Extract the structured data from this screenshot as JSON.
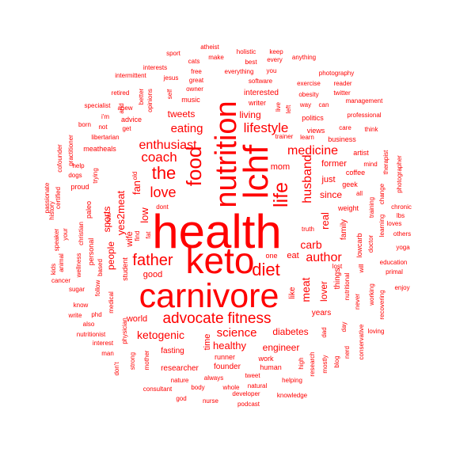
{
  "word_color": "#ff0000",
  "background": "#ffffff",
  "words": [
    {
      "text": "health",
      "weight": 100
    },
    {
      "text": "keto",
      "weight": 78
    },
    {
      "text": "carnivore",
      "weight": 72
    },
    {
      "text": "lchf",
      "weight": 70
    },
    {
      "text": "nutrition",
      "weight": 60
    },
    {
      "text": "food",
      "weight": 40
    },
    {
      "text": "life",
      "weight": 38
    },
    {
      "text": "diet",
      "weight": 35
    },
    {
      "text": "the",
      "weight": 33
    },
    {
      "text": "fitness",
      "weight": 32
    },
    {
      "text": "father",
      "weight": 30
    },
    {
      "text": "advocate",
      "weight": 30
    },
    {
      "text": "lifestyle",
      "weight": 27
    },
    {
      "text": "love",
      "weight": 27
    },
    {
      "text": "coach",
      "weight": 26
    },
    {
      "text": "enthusiast",
      "weight": 25
    },
    {
      "text": "husband",
      "weight": 25
    },
    {
      "text": "medicine",
      "weight": 24
    },
    {
      "text": "author",
      "weight": 24
    },
    {
      "text": "eating",
      "weight": 23
    },
    {
      "text": "science",
      "weight": 23
    },
    {
      "text": "ketogenic",
      "weight": 22
    },
    {
      "text": "carb",
      "weight": 22
    },
    {
      "text": "meat",
      "weight": 21
    },
    {
      "text": "yes2meat",
      "weight": 20
    },
    {
      "text": "low",
      "weight": 20
    },
    {
      "text": "fan",
      "weight": 19
    },
    {
      "text": "real",
      "weight": 19
    },
    {
      "text": "healthy",
      "weight": 19
    },
    {
      "text": "lover",
      "weight": 18
    },
    {
      "text": "engineer",
      "weight": 18
    },
    {
      "text": "diabetes",
      "weight": 17
    },
    {
      "text": "sports",
      "weight": 17
    },
    {
      "text": "people",
      "weight": 17
    },
    {
      "text": "wife",
      "weight": 16
    },
    {
      "text": "world",
      "weight": 16
    },
    {
      "text": "tweets",
      "weight": 16
    },
    {
      "text": "living",
      "weight": 16
    },
    {
      "text": "since",
      "weight": 15
    },
    {
      "text": "former",
      "weight": 15
    },
    {
      "text": "mom",
      "weight": 15
    },
    {
      "text": "time",
      "weight": 15
    },
    {
      "text": "just",
      "weight": 15
    },
    {
      "text": "fasting",
      "weight": 14
    },
    {
      "text": "researcher",
      "weight": 14
    },
    {
      "text": "good",
      "weight": 14
    },
    {
      "text": "founder",
      "weight": 14
    },
    {
      "text": "eat",
      "weight": 14
    },
    {
      "text": "like",
      "weight": 13
    },
    {
      "text": "years",
      "weight": 13
    },
    {
      "text": "interested",
      "weight": 13
    },
    {
      "text": "family",
      "weight": 13
    },
    {
      "text": "things",
      "weight": 13
    },
    {
      "text": "music",
      "weight": 12
    },
    {
      "text": "coffee",
      "weight": 12
    },
    {
      "text": "geek",
      "weight": 12
    },
    {
      "text": "weight",
      "weight": 12
    },
    {
      "text": "lowcarb",
      "weight": 12
    },
    {
      "text": "views",
      "weight": 12
    },
    {
      "text": "runner",
      "weight": 12
    },
    {
      "text": "politics",
      "weight": 11
    },
    {
      "text": "advice",
      "weight": 11
    },
    {
      "text": "writer",
      "weight": 11
    },
    {
      "text": "work",
      "weight": 11
    },
    {
      "text": "human",
      "weight": 11
    },
    {
      "text": "business",
      "weight": 11
    },
    {
      "text": "artist",
      "weight": 11
    },
    {
      "text": "student",
      "weight": 11
    },
    {
      "text": "personal",
      "weight": 11
    },
    {
      "text": "paleo",
      "weight": 11
    },
    {
      "text": "proud",
      "weight": 11
    },
    {
      "text": "meatheals",
      "weight": 11
    },
    {
      "text": "one",
      "weight": 10
    },
    {
      "text": "software",
      "weight": 10
    },
    {
      "text": "great",
      "weight": 10
    },
    {
      "text": "way",
      "weight": 10
    },
    {
      "text": "can",
      "weight": 10
    },
    {
      "text": "medical",
      "weight": 10
    },
    {
      "text": "physician",
      "weight": 10
    },
    {
      "text": "doctor",
      "weight": 10
    },
    {
      "text": "tweet",
      "weight": 10
    },
    {
      "text": "helping",
      "weight": 10
    },
    {
      "text": "developer",
      "weight": 10
    },
    {
      "text": "trying",
      "weight": 10
    },
    {
      "text": "christian",
      "weight": 10
    },
    {
      "text": "wellness",
      "weight": 10
    },
    {
      "text": "dont",
      "weight": 10
    },
    {
      "text": "follow",
      "weight": 10
    },
    {
      "text": "always",
      "weight": 10
    },
    {
      "text": "nature",
      "weight": 10
    },
    {
      "text": "body",
      "weight": 10
    },
    {
      "text": "natural",
      "weight": 10
    },
    {
      "text": "whole",
      "weight": 10
    },
    {
      "text": "exercise",
      "weight": 9
    },
    {
      "text": "obesity",
      "weight": 9
    },
    {
      "text": "everything",
      "weight": 9
    },
    {
      "text": "photography",
      "weight": 9
    },
    {
      "text": "professional",
      "weight": 9
    },
    {
      "text": "libertarian",
      "weight": 9
    },
    {
      "text": "opinions",
      "weight": 9
    },
    {
      "text": "owner",
      "weight": 9
    },
    {
      "text": "free",
      "weight": 9
    },
    {
      "text": "care",
      "weight": 9
    },
    {
      "text": "mind",
      "weight": 9
    },
    {
      "text": "training",
      "weight": 9
    },
    {
      "text": "nutritional",
      "weight": 9
    },
    {
      "text": "never",
      "weight": 9
    },
    {
      "text": "will",
      "weight": 9
    },
    {
      "text": "working",
      "weight": 9
    },
    {
      "text": "dad",
      "weight": 9
    },
    {
      "text": "research",
      "weight": 9
    },
    {
      "text": "mostly",
      "weight": 9
    },
    {
      "text": "day",
      "weight": 9
    },
    {
      "text": "blog",
      "weight": 9
    },
    {
      "text": "consultant",
      "weight": 9
    },
    {
      "text": "nurse",
      "weight": 9
    },
    {
      "text": "podcast",
      "weight": 9
    },
    {
      "text": "knowledge",
      "weight": 9
    },
    {
      "text": "god",
      "weight": 9
    },
    {
      "text": "mother",
      "weight": 9
    },
    {
      "text": "strong",
      "weight": 9
    },
    {
      "text": "man",
      "weight": 9
    },
    {
      "text": "interest",
      "weight": 9
    },
    {
      "text": "also",
      "weight": 9
    },
    {
      "text": "write",
      "weight": 9
    },
    {
      "text": "know",
      "weight": 9
    },
    {
      "text": "phd",
      "weight": 9
    },
    {
      "text": "nutritionist",
      "weight": 9
    },
    {
      "text": "sugar",
      "weight": 9
    },
    {
      "text": "cancer",
      "weight": 9
    },
    {
      "text": "now",
      "weight": 9
    },
    {
      "text": "based",
      "weight": 9
    },
    {
      "text": "fat",
      "weight": 9
    },
    {
      "text": "find",
      "weight": 9
    },
    {
      "text": "old",
      "weight": 9
    },
    {
      "text": "dogs",
      "weight": 9
    },
    {
      "text": "help",
      "weight": 9
    },
    {
      "text": "i'm",
      "weight": 9
    },
    {
      "text": "get",
      "weight": 9
    },
    {
      "text": "not",
      "weight": 9
    },
    {
      "text": "born",
      "weight": 9
    },
    {
      "text": "specialist",
      "weight": 9
    },
    {
      "text": "retired",
      "weight": 9
    },
    {
      "text": "anew",
      "weight": 9
    },
    {
      "text": "and",
      "weight": 9
    },
    {
      "text": "better",
      "weight": 9
    },
    {
      "text": "self",
      "weight": 9
    },
    {
      "text": "jesus",
      "weight": 9
    },
    {
      "text": "interests",
      "weight": 9
    },
    {
      "text": "intermittent",
      "weight": 9
    },
    {
      "text": "sport",
      "weight": 9
    },
    {
      "text": "cats",
      "weight": 9
    },
    {
      "text": "make",
      "weight": 9
    },
    {
      "text": "atheist",
      "weight": 9
    },
    {
      "text": "holistic",
      "weight": 9
    },
    {
      "text": "keep",
      "weight": 9
    },
    {
      "text": "best",
      "weight": 9
    },
    {
      "text": "every",
      "weight": 9
    },
    {
      "text": "anything",
      "weight": 9
    },
    {
      "text": "you",
      "weight": 9
    },
    {
      "text": "reader",
      "weight": 9
    },
    {
      "text": "twitter",
      "weight": 9
    },
    {
      "text": "management",
      "weight": 9
    },
    {
      "text": "think",
      "weight": 9
    },
    {
      "text": "therapist",
      "weight": 9
    },
    {
      "text": "photographer",
      "weight": 9
    },
    {
      "text": "change",
      "weight": 9
    },
    {
      "text": "chronic",
      "weight": 9
    },
    {
      "text": "lbs",
      "weight": 9
    },
    {
      "text": "loves",
      "weight": 9
    },
    {
      "text": "others",
      "weight": 9
    },
    {
      "text": "learning",
      "weight": 9
    },
    {
      "text": "yoga",
      "weight": 9
    },
    {
      "text": "education",
      "weight": 9
    },
    {
      "text": "primal",
      "weight": 9
    },
    {
      "text": "enjoy",
      "weight": 9
    },
    {
      "text": "recovering",
      "weight": 9
    },
    {
      "text": "loving",
      "weight": 9
    },
    {
      "text": "conservative",
      "weight": 9
    },
    {
      "text": "nerd",
      "weight": 9
    },
    {
      "text": "high",
      "weight": 9
    },
    {
      "text": "lost",
      "weight": 9
    },
    {
      "text": "all",
      "weight": 9
    },
    {
      "text": "truth",
      "weight": 9
    },
    {
      "text": "learn",
      "weight": 9
    },
    {
      "text": "trainer",
      "weight": 9
    },
    {
      "text": "left",
      "weight": 9
    },
    {
      "text": "live",
      "weight": 9
    },
    {
      "text": "don't",
      "weight": 9
    },
    {
      "text": "speaker",
      "weight": 9
    },
    {
      "text": "your",
      "weight": 9
    },
    {
      "text": "certified",
      "weight": 9
    },
    {
      "text": "cofounder",
      "weight": 9
    },
    {
      "text": "practitioner",
      "weight": 9
    },
    {
      "text": "passionate",
      "weight": 9
    },
    {
      "text": "history",
      "weight": 9
    },
    {
      "text": "kids",
      "weight": 9
    },
    {
      "text": "animal",
      "weight": 9
    }
  ]
}
